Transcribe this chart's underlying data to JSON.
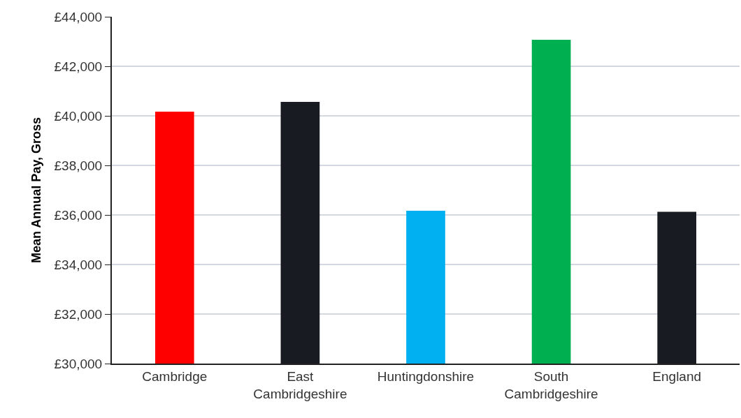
{
  "chart_data": {
    "type": "bar",
    "ylabel": "Mean Annual Pay, Gross",
    "categories": [
      "Cambridge",
      "East Cambridgeshire",
      "Huntingdonshire",
      "South Cambridgeshire",
      "England"
    ],
    "values": [
      40170,
      40560,
      36170,
      43070,
      36130
    ],
    "colors": [
      "#ff0000",
      "#181c22",
      "#00b0f0",
      "#00b050",
      "#181c22"
    ],
    "ylim": [
      30000,
      44000
    ],
    "yticks": [
      {
        "value": 30000,
        "label": "£30,000"
      },
      {
        "value": 32000,
        "label": "£32,000"
      },
      {
        "value": 34000,
        "label": "£34,000"
      },
      {
        "value": 36000,
        "label": "£36,000"
      },
      {
        "value": 38000,
        "label": "£38,000"
      },
      {
        "value": 40000,
        "label": "£40,000"
      },
      {
        "value": 42000,
        "label": "£42,000"
      },
      {
        "value": 44000,
        "label": "£44,000"
      }
    ],
    "grid": "y",
    "legend": false
  }
}
